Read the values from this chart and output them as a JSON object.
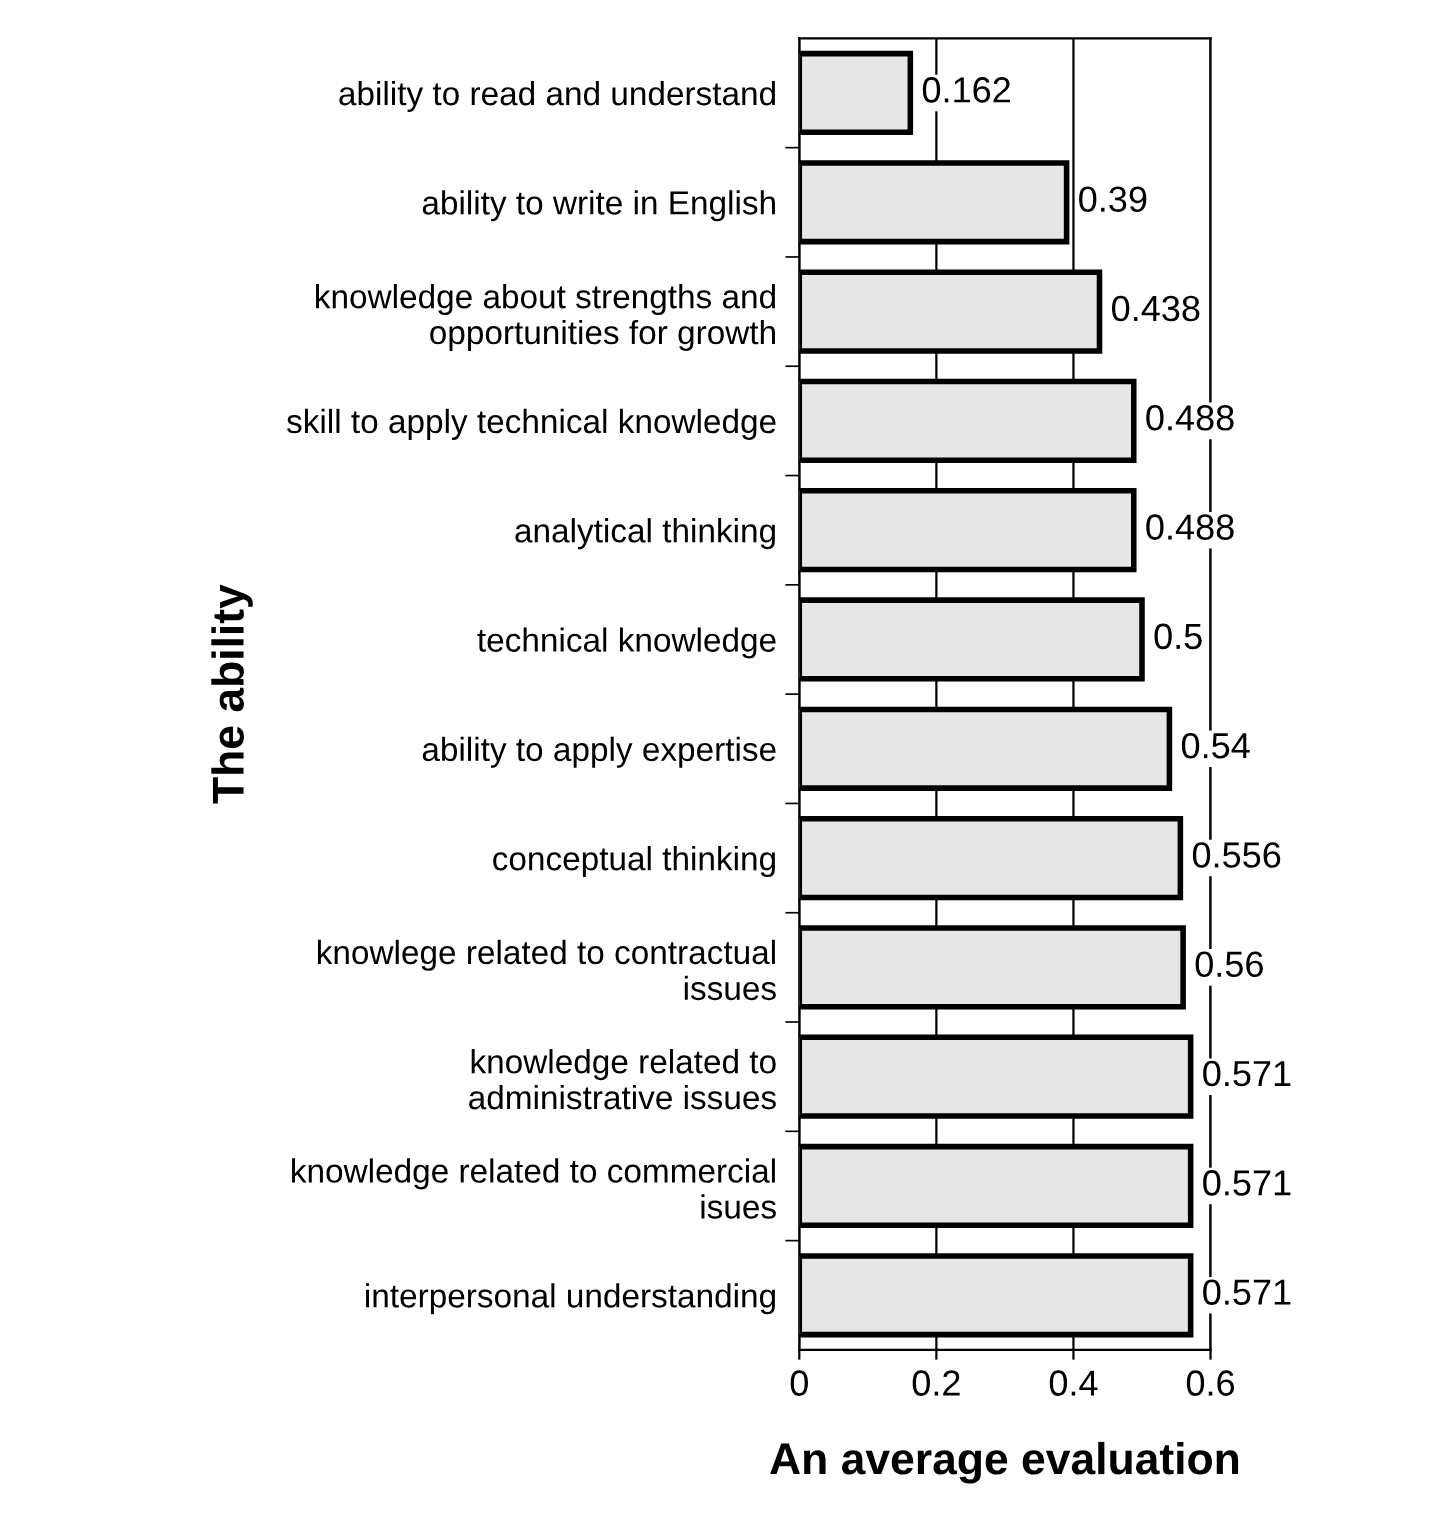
{
  "chart_data": {
    "type": "bar",
    "orientation": "horizontal",
    "xlabel": "An average evaluation",
    "ylabel": "The ability",
    "categories": [
      "ability to read and understand",
      "ability to write in English",
      "knowledge about strengths and\nopportunities for growth",
      "skill to apply technical knowledge",
      "analytical thinking",
      "technical knowledge",
      "ability to apply expertise",
      "conceptual thinking",
      "knowlege related to contractual\nissues",
      "knowledge related to\nadministrative issues",
      "knowledge related to commercial\nisues",
      "interpersonal understanding"
    ],
    "values": [
      0.162,
      0.39,
      0.438,
      0.488,
      0.488,
      0.5,
      0.54,
      0.556,
      0.56,
      0.571,
      0.571,
      0.571
    ],
    "color": "#e6e6e6",
    "xlim": [
      0,
      0.6
    ],
    "xticks": [
      0,
      0.2,
      0.4,
      0.6
    ],
    "grid": "x",
    "data_labels": true
  }
}
